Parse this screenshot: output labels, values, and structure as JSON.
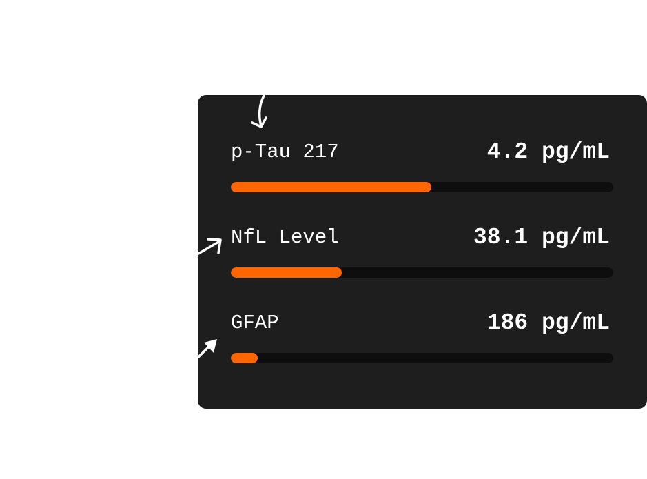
{
  "colors": {
    "card": "#1e1e1e",
    "track": "#0e0e0e",
    "accent": "#ff6600",
    "text": "#ffffff"
  },
  "biomarkers": [
    {
      "label": "p-Tau 217",
      "value": "4.2 pg/mL",
      "level_percent": 52.5
    },
    {
      "label": "NfL Level",
      "value": "38.1 pg/mL",
      "level_percent": 29
    },
    {
      "label": "GFAP",
      "value": "186 pg/mL",
      "level_percent": 7
    }
  ],
  "icons": [
    "curved-arrow-down-icon",
    "arrow-up-right-icon",
    "arrow-up-right-filled-icon"
  ]
}
